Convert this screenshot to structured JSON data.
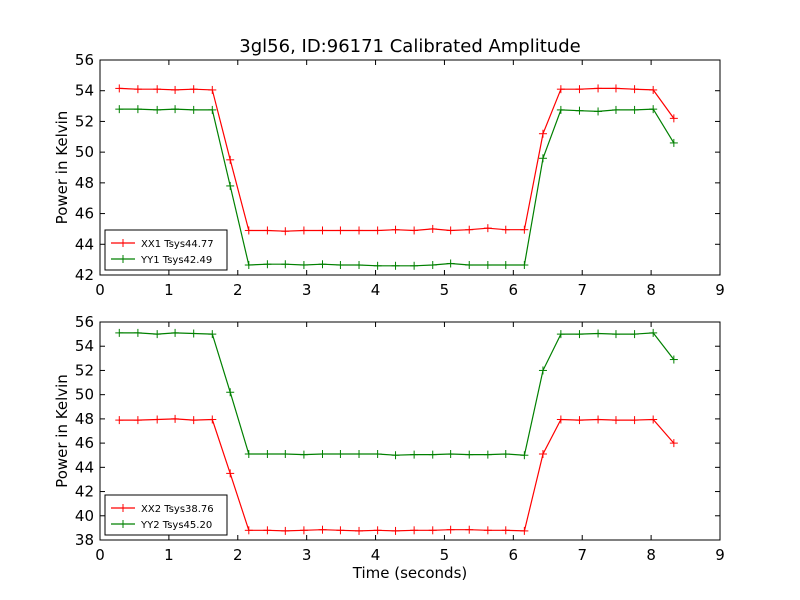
{
  "title": "3gl56, ID:96171 Calibrated Amplitude",
  "chart_data": [
    {
      "type": "line",
      "xlabel": "",
      "ylabel": "Power in Kelvin",
      "xlim": [
        0,
        9
      ],
      "ylim": [
        42,
        56
      ],
      "xticks": [
        "0",
        "1",
        "2",
        "3",
        "4",
        "5",
        "6",
        "7",
        "8",
        "9"
      ],
      "yticks": [
        "42",
        "44",
        "46",
        "48",
        "50",
        "52",
        "54",
        "56"
      ],
      "legend_position": "lower-left",
      "grid": false,
      "x": [
        0.28,
        0.55,
        0.83,
        1.09,
        1.36,
        1.63,
        1.89,
        2.16,
        2.43,
        2.69,
        2.96,
        3.23,
        3.49,
        3.76,
        4.03,
        4.29,
        4.56,
        4.83,
        5.09,
        5.36,
        5.63,
        5.89,
        6.16,
        6.43,
        6.69,
        6.96,
        7.23,
        7.49,
        7.76,
        8.03,
        8.33
      ],
      "series": [
        {
          "name": "XX1 Tsys44.77",
          "color": "#ff0000",
          "values": [
            54.15,
            54.1,
            54.1,
            54.05,
            54.1,
            54.05,
            49.5,
            44.9,
            44.9,
            44.85,
            44.9,
            44.9,
            44.9,
            44.9,
            44.9,
            44.95,
            44.9,
            45.0,
            44.9,
            44.95,
            45.05,
            44.95,
            44.95,
            51.2,
            54.1,
            54.1,
            54.15,
            54.15,
            54.1,
            54.05,
            52.2
          ]
        },
        {
          "name": "YY1 Tsys42.49",
          "color": "#008000",
          "values": [
            52.8,
            52.8,
            52.75,
            52.8,
            52.75,
            52.75,
            47.8,
            42.65,
            42.7,
            42.7,
            42.65,
            42.7,
            42.65,
            42.65,
            42.6,
            42.6,
            42.6,
            42.65,
            42.75,
            42.65,
            42.65,
            42.65,
            42.65,
            49.6,
            52.75,
            52.7,
            52.65,
            52.75,
            52.75,
            52.8,
            50.6
          ]
        }
      ]
    },
    {
      "type": "line",
      "xlabel": "Time (seconds)",
      "ylabel": "Power in Kelvin",
      "xlim": [
        0,
        9
      ],
      "ylim": [
        38,
        56
      ],
      "xticks": [
        "0",
        "1",
        "2",
        "3",
        "4",
        "5",
        "6",
        "7",
        "8",
        "9"
      ],
      "yticks": [
        "38",
        "40",
        "42",
        "44",
        "46",
        "48",
        "50",
        "52",
        "54",
        "56"
      ],
      "legend_position": "lower-left",
      "grid": false,
      "x": [
        0.28,
        0.55,
        0.83,
        1.09,
        1.36,
        1.63,
        1.89,
        2.16,
        2.43,
        2.69,
        2.96,
        3.23,
        3.49,
        3.76,
        4.03,
        4.29,
        4.56,
        4.83,
        5.09,
        5.36,
        5.63,
        5.89,
        6.16,
        6.43,
        6.69,
        6.96,
        7.23,
        7.49,
        7.76,
        8.03,
        8.33
      ],
      "series": [
        {
          "name": "XX2 Tsys38.76",
          "color": "#ff0000",
          "values": [
            47.9,
            47.9,
            47.95,
            48.0,
            47.9,
            47.95,
            43.5,
            38.8,
            38.8,
            38.75,
            38.8,
            38.85,
            38.8,
            38.75,
            38.8,
            38.75,
            38.8,
            38.8,
            38.85,
            38.85,
            38.8,
            38.8,
            38.75,
            45.1,
            47.95,
            47.9,
            47.95,
            47.9,
            47.9,
            47.95,
            46.0
          ]
        },
        {
          "name": "YY2 Tsys45.20",
          "color": "#008000",
          "values": [
            55.1,
            55.1,
            55.0,
            55.1,
            55.05,
            55.0,
            50.2,
            45.1,
            45.1,
            45.1,
            45.05,
            45.1,
            45.1,
            45.1,
            45.1,
            45.0,
            45.05,
            45.05,
            45.1,
            45.05,
            45.05,
            45.1,
            45.0,
            52.0,
            55.0,
            55.0,
            55.05,
            55.0,
            55.0,
            55.1,
            52.9
          ]
        }
      ]
    }
  ]
}
